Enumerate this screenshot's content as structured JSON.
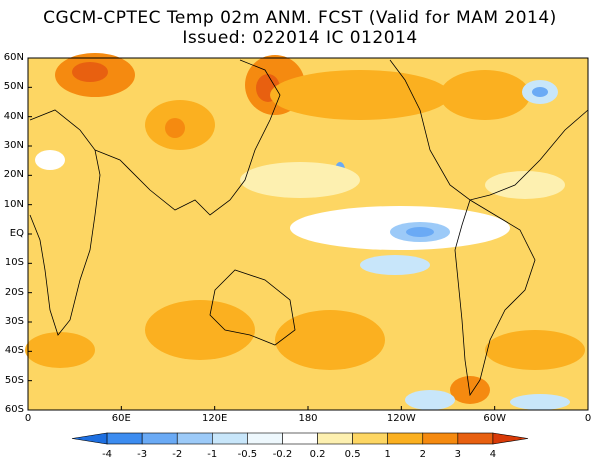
{
  "header": {
    "title_line1": "CGCM-CPTEC Temp 02m ANM. FCST  (Valid for MAM 2014)",
    "title_line2": "Issued:  022014 IC 012014"
  },
  "map": {
    "lat_labels": [
      "60N",
      "50N",
      "40N",
      "30N",
      "20N",
      "10N",
      "EQ",
      "10S",
      "20S",
      "30S",
      "40S",
      "50S",
      "60S"
    ],
    "lon_labels": [
      "0",
      "60E",
      "120E",
      "180",
      "120W",
      "60W",
      "0"
    ],
    "lon_values": [
      0,
      60,
      120,
      180,
      240,
      300,
      360
    ],
    "lat_values": [
      60,
      50,
      40,
      30,
      20,
      10,
      0,
      -10,
      -20,
      -30,
      -40,
      -50,
      -60
    ]
  },
  "colorbar": {
    "labels": [
      "-4",
      "-3",
      "-2",
      "-1",
      "-0.5",
      "-0.2",
      "0.2",
      "0.5",
      "1",
      "2",
      "3",
      "4"
    ],
    "colors": [
      "#1e6fe0",
      "#3c8cf0",
      "#6aaaf5",
      "#9ccaf8",
      "#c8e6fa",
      "#eef8fd",
      "#ffffff",
      "#fdf0b0",
      "#fdd663",
      "#fbb020",
      "#f58a10",
      "#e86010",
      "#d83a08"
    ]
  },
  "palette": {
    "land_line": "#000000",
    "frame": "#000000"
  }
}
